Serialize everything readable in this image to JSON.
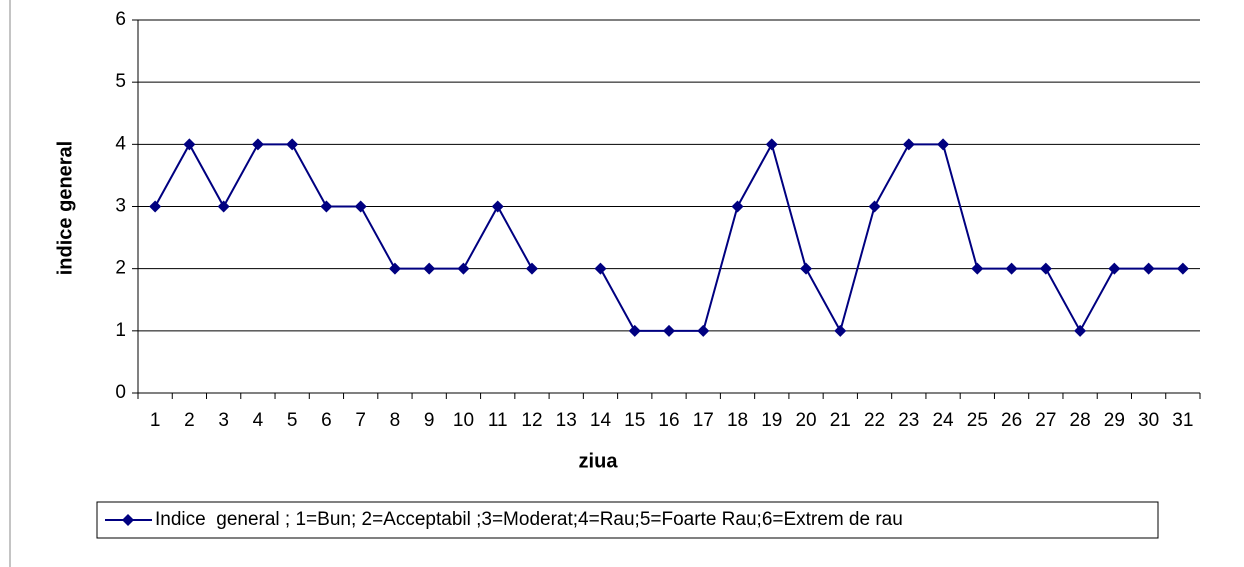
{
  "chart_data": {
    "type": "line",
    "categories": [
      "1",
      "2",
      "3",
      "4",
      "5",
      "6",
      "7",
      "8",
      "9",
      "10",
      "11",
      "12",
      "13",
      "14",
      "15",
      "16",
      "17",
      "18",
      "19",
      "20",
      "21",
      "22",
      "23",
      "24",
      "25",
      "26",
      "27",
      "28",
      "29",
      "30",
      "31"
    ],
    "series": [
      {
        "name": "Indice  general ; 1=Bun; 2=Acceptabil ;3=Moderat;4=Rau;5=Foarte Rau;6=Extrem de rau",
        "color": "#000080",
        "values": [
          3,
          4,
          3,
          4,
          4,
          3,
          3,
          2,
          2,
          2,
          3,
          2,
          null,
          2,
          1,
          1,
          1,
          3,
          4,
          2,
          1,
          3,
          4,
          4,
          2,
          2,
          2,
          1,
          2,
          2,
          2
        ]
      }
    ],
    "ylim": [
      0,
      6
    ],
    "yticks": [
      0,
      1,
      2,
      3,
      4,
      5,
      6
    ],
    "grid": true,
    "xlabel": "ziua",
    "ylabel": "indice general",
    "legend": "bottom"
  }
}
